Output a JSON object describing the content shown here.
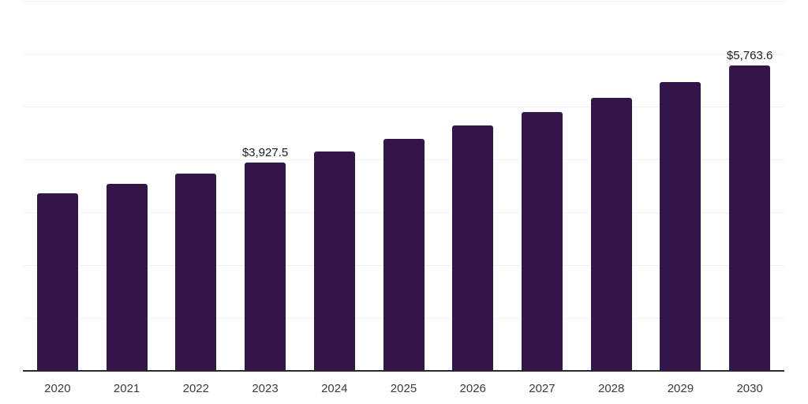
{
  "chart_data": {
    "type": "bar",
    "title": "",
    "xlabel": "",
    "ylabel": "",
    "categories": [
      "2020",
      "2021",
      "2022",
      "2023",
      "2024",
      "2025",
      "2026",
      "2027",
      "2028",
      "2029",
      "2030"
    ],
    "values": [
      3345,
      3525,
      3718,
      3927.5,
      4148,
      4385,
      4630,
      4888,
      5163,
      5462,
      5763.6
    ],
    "bar_labels": [
      "",
      "",
      "",
      "$3,927.5",
      "",
      "",
      "",
      "",
      "",
      "",
      "$5,763.6"
    ],
    "ylim": [
      0,
      7000
    ],
    "gridline_step": 1000,
    "grid": true,
    "legend": false,
    "colors": {
      "bar": "#341549",
      "gridline": "#f1f1f1",
      "axis_line": "#2b2b2b",
      "tick_label": "#3d3d3d",
      "data_label": "#1d1d1d",
      "background": "#ffffff"
    }
  }
}
